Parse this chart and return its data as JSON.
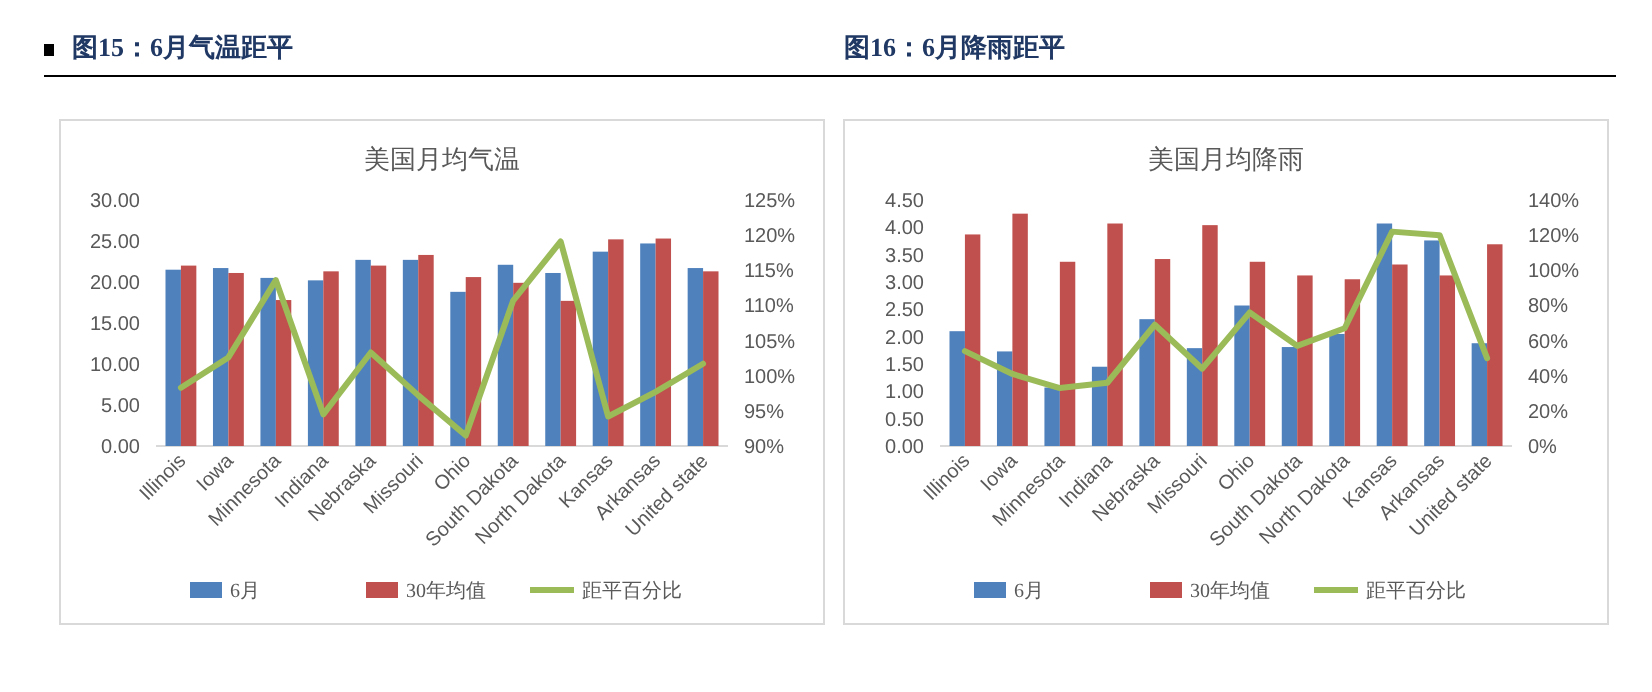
{
  "chart_data": [
    {
      "type": "bar",
      "title": "图15：6月气温距平",
      "subtitle": "美国月均气温",
      "categories": [
        "Illinois",
        "Iowa",
        "Minnesota",
        "Indiana",
        "Nebraska",
        "Missouri",
        "Ohio",
        "South Dakota",
        "North Dakota",
        "Kansas",
        "Arkansas",
        "United state"
      ],
      "series": [
        {
          "name": "6月",
          "color": "#4f81bd",
          "values": [
            21.5,
            21.7,
            20.5,
            20.2,
            22.7,
            22.7,
            18.8,
            22.1,
            21.1,
            23.7,
            24.7,
            21.7
          ]
        },
        {
          "name": "30年均值",
          "color": "#c0504d",
          "values": [
            22.0,
            21.1,
            17.8,
            21.3,
            22.0,
            23.3,
            20.6,
            19.9,
            17.7,
            25.2,
            25.3,
            21.3
          ]
        },
        {
          "name": "距平百分比",
          "type": "line",
          "axis": "y2",
          "color": "#9bbb59",
          "values": [
            98.3,
            102.6,
            113.6,
            94.5,
            103.3,
            97.2,
            91.5,
            110.7,
            119.1,
            94.2,
            97.7,
            101.7
          ]
        }
      ],
      "ylim": [
        0,
        30
      ],
      "yticks": [
        {
          "value": 0,
          "label": "0.00"
        },
        {
          "value": 5,
          "label": "5.00"
        },
        {
          "value": 10,
          "label": "10.00"
        },
        {
          "value": 15,
          "label": "15.00"
        },
        {
          "value": 20,
          "label": "20.00"
        },
        {
          "value": 25,
          "label": "25.00"
        },
        {
          "value": 30,
          "label": "30.00"
        }
      ],
      "y2lim": [
        90,
        125
      ],
      "y2ticks": [
        {
          "value": 90,
          "label": "90%"
        },
        {
          "value": 95,
          "label": "95%"
        },
        {
          "value": 100,
          "label": "100%"
        },
        {
          "value": 105,
          "label": "105%"
        },
        {
          "value": 110,
          "label": "110%"
        },
        {
          "value": 115,
          "label": "115%"
        },
        {
          "value": 120,
          "label": "120%"
        },
        {
          "value": 125,
          "label": "125%"
        }
      ],
      "legend": "bottom"
    },
    {
      "type": "bar",
      "title": "图16：6月降雨距平",
      "subtitle": "美国月均降雨",
      "categories": [
        "Illinois",
        "Iowa",
        "Minnesota",
        "Indiana",
        "Nebraska",
        "Missouri",
        "Ohio",
        "South Dakota",
        "North Dakota",
        "Kansas",
        "Arkansas",
        "United state"
      ],
      "series": [
        {
          "name": "6月",
          "color": "#4f81bd",
          "values": [
            2.1,
            1.73,
            1.07,
            1.45,
            2.32,
            1.79,
            2.57,
            1.81,
            2.05,
            4.07,
            3.76,
            1.88
          ]
        },
        {
          "name": "30年均值",
          "color": "#c0504d",
          "values": [
            3.87,
            4.25,
            3.37,
            4.07,
            3.42,
            4.04,
            3.37,
            3.12,
            3.05,
            3.32,
            3.12,
            3.69
          ]
        },
        {
          "name": "距平百分比",
          "type": "line",
          "axis": "y2",
          "color": "#9bbb59",
          "values": [
            54,
            41,
            33,
            36,
            69,
            44,
            76,
            57,
            67,
            122,
            120,
            50
          ]
        }
      ],
      "ylim": [
        0,
        4.5
      ],
      "yticks": [
        {
          "value": 0,
          "label": "0.00"
        },
        {
          "value": 0.5,
          "label": "0.50"
        },
        {
          "value": 1,
          "label": "1.00"
        },
        {
          "value": 1.5,
          "label": "1.50"
        },
        {
          "value": 2,
          "label": "2.00"
        },
        {
          "value": 2.5,
          "label": "2.50"
        },
        {
          "value": 3,
          "label": "3.00"
        },
        {
          "value": 3.5,
          "label": "3.50"
        },
        {
          "value": 4,
          "label": "4.00"
        },
        {
          "value": 4.5,
          "label": "4.50"
        }
      ],
      "y2lim": [
        0,
        140
      ],
      "y2ticks": [
        {
          "value": 0,
          "label": "0%"
        },
        {
          "value": 20,
          "label": "20%"
        },
        {
          "value": 40,
          "label": "40%"
        },
        {
          "value": 60,
          "label": "60%"
        },
        {
          "value": 80,
          "label": "80%"
        },
        {
          "value": 100,
          "label": "100%"
        },
        {
          "value": 120,
          "label": "120%"
        },
        {
          "value": 140,
          "label": "140%"
        }
      ],
      "legend": "bottom"
    }
  ]
}
